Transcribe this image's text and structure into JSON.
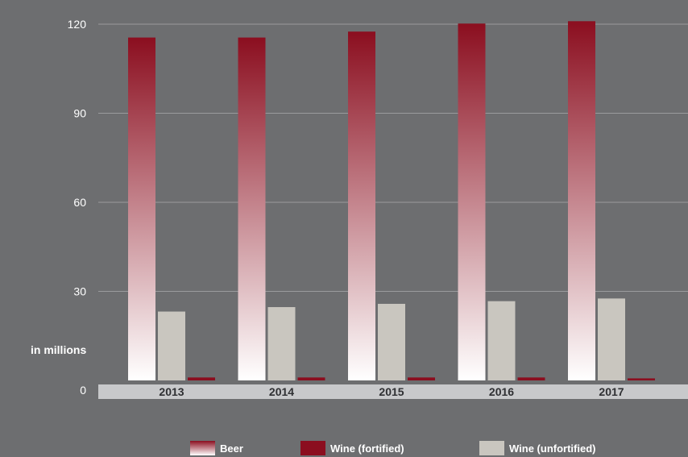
{
  "colors": {
    "background": "#6d6e70",
    "beer_top": "#8b0e1f",
    "beer_bottom": "#ffffff",
    "wine_fortified": "#8b0e1f",
    "wine_unfortified": "#c9c6bf",
    "axis_band": "#c8c9cb",
    "gridline": "#9a9b9d"
  },
  "chart_data": {
    "type": "bar",
    "categories": [
      "2013",
      "2014",
      "2015",
      "2016",
      "2017"
    ],
    "series": [
      {
        "name": "Beer",
        "values": [
          115.5,
          115.5,
          117.5,
          120.2,
          121.0
        ]
      },
      {
        "name": "Wine (unfortified)",
        "values": [
          23.2,
          24.7,
          25.8,
          26.7,
          27.6
        ]
      },
      {
        "name": "Wine (fortified)",
        "values": [
          1.0,
          1.0,
          1.0,
          1.0,
          0.7
        ]
      }
    ],
    "yticks": [
      "0",
      "30",
      "60",
      "90",
      "120"
    ],
    "ylabel": "in millions",
    "xlabel": "",
    "title": "",
    "ylim": [
      0,
      120
    ],
    "grid": true,
    "legend_position": "bottom"
  },
  "legend": {
    "items": [
      {
        "label": "Beer",
        "swatch": "gradient"
      },
      {
        "label": "Wine (fortified)",
        "swatch": "wine_fortified"
      },
      {
        "label": "Wine (unfortified)",
        "swatch": "wine_unfortified"
      }
    ]
  }
}
